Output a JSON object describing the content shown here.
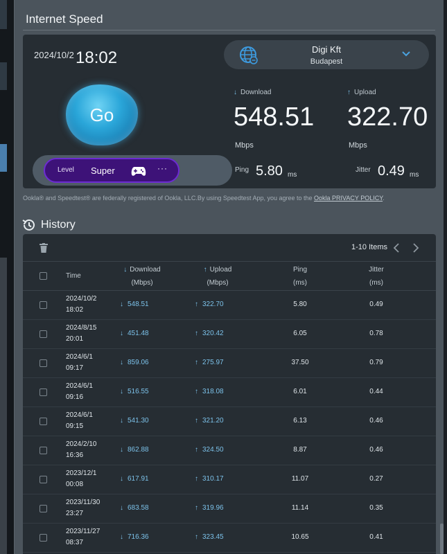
{
  "page": {
    "title": "Internet Speed"
  },
  "test": {
    "date": "2024/10/2",
    "time": "18:02",
    "go_label": "Go",
    "server": {
      "name": "Digi Kft",
      "city": "Budapest"
    },
    "level": {
      "label": "Level",
      "value": "Super",
      "more": "···"
    },
    "download": {
      "label": "Download",
      "value": "548.51",
      "unit": "Mbps"
    },
    "upload": {
      "label": "Upload",
      "value": "322.70",
      "unit": "Mbps"
    },
    "ping": {
      "label": "Ping",
      "value": "5.80",
      "unit": "ms"
    },
    "jitter": {
      "label": "Jitter",
      "value": "0.49",
      "unit": "ms"
    }
  },
  "legal": {
    "text": "Ookla® and Speedtest® are federally registered of Ookla, LLC.By using Speedtest App, you agree to the ",
    "link": "Ookla PRIVACY POLICY",
    "end": "."
  },
  "history": {
    "title": "History",
    "items_label": "1-10 Items",
    "columns": {
      "time": "Time",
      "download": "Download",
      "download_unit": "(Mbps)",
      "upload": "Upload",
      "upload_unit": "(Mbps)",
      "ping": "Ping",
      "ping_unit": "(ms)",
      "jitter": "Jitter",
      "jitter_unit": "(ms)"
    },
    "rows": [
      {
        "date": "2024/10/2",
        "time": "18:02",
        "download": "548.51",
        "upload": "322.70",
        "ping": "5.80",
        "jitter": "0.49"
      },
      {
        "date": "2024/8/15",
        "time": "20:01",
        "download": "451.48",
        "upload": "320.42",
        "ping": "6.05",
        "jitter": "0.78"
      },
      {
        "date": "2024/6/1",
        "time": "09:17",
        "download": "859.06",
        "upload": "275.97",
        "ping": "37.50",
        "jitter": "0.79"
      },
      {
        "date": "2024/6/1",
        "time": "09:16",
        "download": "516.55",
        "upload": "318.08",
        "ping": "6.01",
        "jitter": "0.44"
      },
      {
        "date": "2024/6/1",
        "time": "09:15",
        "download": "541.30",
        "upload": "321.20",
        "ping": "6.13",
        "jitter": "0.46"
      },
      {
        "date": "2024/2/10",
        "time": "16:36",
        "download": "862.88",
        "upload": "324.50",
        "ping": "8.87",
        "jitter": "0.46"
      },
      {
        "date": "2023/12/1",
        "time": "00:08",
        "download": "617.91",
        "upload": "310.17",
        "ping": "11.07",
        "jitter": "0.27"
      },
      {
        "date": "2023/11/30",
        "time": "23:27",
        "download": "683.58",
        "upload": "319.96",
        "ping": "11.14",
        "jitter": "0.35"
      },
      {
        "date": "2023/11/27",
        "time": "08:37",
        "download": "716.36",
        "upload": "323.45",
        "ping": "10.65",
        "jitter": "0.41"
      }
    ]
  },
  "colors": {
    "accent": "#7cc2ea",
    "level": "#3d1278",
    "go": "#2aa6d9",
    "card": "#262d33",
    "panel": "#4b545c"
  },
  "icons": [
    "globe-icon",
    "chevron-down-icon",
    "gamepad-icon",
    "download-arrow-icon",
    "upload-arrow-icon",
    "history-icon",
    "trash-icon",
    "chevron-left-icon",
    "chevron-right-icon"
  ]
}
